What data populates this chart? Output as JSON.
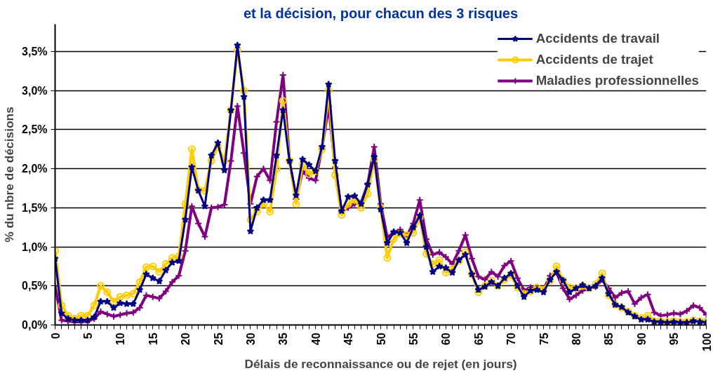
{
  "chart_data": {
    "type": "line",
    "title": "et la décision, pour chacun des 3 risques",
    "xlabel": "Délais de reconnaissance ou de rejet (en jours)",
    "ylabel": "% du nbre de décisions",
    "x": [
      0,
      1,
      2,
      3,
      4,
      5,
      6,
      7,
      8,
      9,
      10,
      11,
      12,
      13,
      14,
      15,
      16,
      17,
      18,
      19,
      20,
      21,
      22,
      23,
      24,
      25,
      26,
      27,
      28,
      29,
      30,
      31,
      32,
      33,
      34,
      35,
      36,
      37,
      38,
      39,
      40,
      41,
      42,
      43,
      44,
      45,
      46,
      47,
      48,
      49,
      50,
      51,
      52,
      53,
      54,
      55,
      56,
      57,
      58,
      59,
      60,
      61,
      62,
      63,
      64,
      65,
      66,
      67,
      68,
      69,
      70,
      71,
      72,
      73,
      74,
      75,
      76,
      77,
      78,
      79,
      80,
      81,
      82,
      83,
      84,
      85,
      86,
      87,
      88,
      89,
      90,
      91,
      92,
      93,
      94,
      95,
      96,
      97,
      98,
      99,
      100
    ],
    "series": [
      {
        "name": "Accidents de travail",
        "color": "#000080",
        "marker": "star",
        "values": [
          0.85,
          0.15,
          0.08,
          0.06,
          0.06,
          0.06,
          0.1,
          0.3,
          0.3,
          0.22,
          0.28,
          0.27,
          0.27,
          0.45,
          0.65,
          0.6,
          0.56,
          0.7,
          0.8,
          0.82,
          1.35,
          2.02,
          1.72,
          1.52,
          2.17,
          2.33,
          1.98,
          2.75,
          3.58,
          2.92,
          1.2,
          1.5,
          1.6,
          1.6,
          2.17,
          2.75,
          2.1,
          1.66,
          2.12,
          2.05,
          1.97,
          2.28,
          3.08,
          2.1,
          1.46,
          1.64,
          1.65,
          1.55,
          1.8,
          2.15,
          1.48,
          1.05,
          1.19,
          1.18,
          1.05,
          1.25,
          1.4,
          1.0,
          0.68,
          0.75,
          0.73,
          0.67,
          0.83,
          0.9,
          0.65,
          0.45,
          0.49,
          0.55,
          0.5,
          0.6,
          0.66,
          0.5,
          0.36,
          0.44,
          0.45,
          0.42,
          0.58,
          0.68,
          0.57,
          0.42,
          0.47,
          0.51,
          0.47,
          0.5,
          0.6,
          0.4,
          0.26,
          0.23,
          0.16,
          0.11,
          0.07,
          0.07,
          0.04,
          0.04,
          0.03,
          0.04,
          0.03,
          0.03,
          0.05,
          0.04,
          0.03
        ]
      },
      {
        "name": "Accidents de trajet",
        "color": "#ffcc00",
        "marker": "circle",
        "values": [
          0.95,
          0.25,
          0.12,
          0.08,
          0.12,
          0.12,
          0.25,
          0.5,
          0.42,
          0.3,
          0.36,
          0.38,
          0.4,
          0.55,
          0.74,
          0.75,
          0.68,
          0.78,
          0.86,
          0.88,
          1.55,
          2.25,
          1.73,
          1.72,
          2.1,
          2.28,
          2.1,
          2.75,
          3.52,
          3.0,
          1.35,
          1.45,
          1.55,
          1.45,
          2.0,
          2.87,
          2.1,
          1.55,
          2.05,
          1.93,
          1.97,
          2.25,
          3.0,
          1.92,
          1.41,
          1.55,
          1.6,
          1.5,
          1.68,
          2.12,
          1.5,
          0.86,
          1.1,
          1.17,
          1.15,
          1.18,
          1.38,
          0.91,
          0.78,
          0.83,
          0.67,
          0.72,
          0.82,
          0.93,
          0.65,
          0.42,
          0.5,
          0.57,
          0.5,
          0.58,
          0.64,
          0.48,
          0.4,
          0.43,
          0.48,
          0.45,
          0.57,
          0.75,
          0.57,
          0.48,
          0.47,
          0.5,
          0.47,
          0.52,
          0.66,
          0.38,
          0.26,
          0.22,
          0.17,
          0.12,
          0.09,
          0.12,
          0.05,
          0.05,
          0.04,
          0.05,
          0.04,
          0.04,
          0.06,
          0.05,
          0.04
        ]
      },
      {
        "name": "Maladies professionnelles",
        "color": "#800080",
        "marker": "cross",
        "values": [
          0.5,
          0.06,
          0.05,
          0.04,
          0.04,
          0.05,
          0.08,
          0.17,
          0.14,
          0.11,
          0.13,
          0.15,
          0.16,
          0.22,
          0.38,
          0.36,
          0.34,
          0.43,
          0.55,
          0.63,
          0.95,
          1.52,
          1.3,
          1.13,
          1.5,
          1.51,
          1.54,
          2.1,
          2.8,
          2.2,
          1.55,
          1.9,
          2.0,
          1.85,
          2.6,
          3.2,
          2.1,
          1.61,
          1.97,
          1.88,
          1.85,
          2.27,
          2.8,
          2.02,
          1.45,
          1.5,
          1.55,
          1.57,
          1.8,
          2.28,
          1.55,
          1.12,
          1.18,
          1.22,
          1.14,
          1.3,
          1.6,
          1.1,
          0.9,
          0.93,
          0.87,
          0.78,
          0.95,
          1.15,
          0.85,
          0.62,
          0.58,
          0.68,
          0.62,
          0.76,
          0.82,
          0.6,
          0.44,
          0.48,
          0.47,
          0.45,
          0.63,
          0.67,
          0.47,
          0.33,
          0.38,
          0.44,
          0.47,
          0.49,
          0.58,
          0.47,
          0.35,
          0.41,
          0.43,
          0.27,
          0.35,
          0.39,
          0.16,
          0.12,
          0.13,
          0.15,
          0.14,
          0.18,
          0.25,
          0.22,
          0.13
        ]
      }
    ],
    "xlim": [
      0,
      100
    ],
    "xticks": [
      0,
      {
        "value": 1,
        "label": null
      },
      {
        "value": 2,
        "label": null
      },
      {
        "value": 3,
        "label": null
      },
      {
        "value": 4,
        "label": null
      },
      5,
      {
        "value": 6,
        "label": null
      },
      {
        "value": 7,
        "label": null
      },
      {
        "value": 8,
        "label": null
      },
      {
        "value": 9,
        "label": null
      },
      10,
      {
        "value": 11,
        "label": null
      },
      {
        "value": 12,
        "label": null
      },
      {
        "value": 13,
        "label": null
      },
      {
        "value": 14,
        "label": null
      },
      15,
      {
        "value": 16,
        "label": null
      },
      {
        "value": 17,
        "label": null
      },
      {
        "value": 18,
        "label": null
      },
      {
        "value": 19,
        "label": null
      },
      20,
      {
        "value": 21,
        "label": null
      },
      {
        "value": 22,
        "label": null
      },
      {
        "value": 23,
        "label": null
      },
      {
        "value": 24,
        "label": null
      },
      25,
      {
        "value": 26,
        "label": null
      },
      {
        "value": 27,
        "label": null
      },
      {
        "value": 28,
        "label": null
      },
      {
        "value": 29,
        "label": null
      },
      30,
      {
        "value": 31,
        "label": null
      },
      {
        "value": 32,
        "label": null
      },
      {
        "value": 33,
        "label": null
      },
      {
        "value": 34,
        "label": null
      },
      35,
      {
        "value": 36,
        "label": null
      },
      {
        "value": 37,
        "label": null
      },
      {
        "value": 38,
        "label": null
      },
      {
        "value": 39,
        "label": null
      },
      40,
      {
        "value": 41,
        "label": null
      },
      {
        "value": 42,
        "label": null
      },
      {
        "value": 43,
        "label": null
      },
      {
        "value": 44,
        "label": null
      },
      45,
      {
        "value": 46,
        "label": null
      },
      {
        "value": 47,
        "label": null
      },
      {
        "value": 48,
        "label": null
      },
      {
        "value": 49,
        "label": null
      },
      50,
      {
        "value": 51,
        "label": null
      },
      {
        "value": 52,
        "label": null
      },
      {
        "value": 53,
        "label": null
      },
      {
        "value": 54,
        "label": null
      },
      55,
      {
        "value": 56,
        "label": null
      },
      {
        "value": 57,
        "label": null
      },
      {
        "value": 58,
        "label": null
      },
      {
        "value": 59,
        "label": null
      },
      60,
      {
        "value": 61,
        "label": null
      },
      {
        "value": 62,
        "label": null
      },
      {
        "value": 63,
        "label": null
      },
      {
        "value": 64,
        "label": null
      },
      65,
      {
        "value": 66,
        "label": null
      },
      {
        "value": 67,
        "label": null
      },
      {
        "value": 68,
        "label": null
      },
      {
        "value": 69,
        "label": null
      },
      70,
      {
        "value": 71,
        "label": null
      },
      {
        "value": 72,
        "label": null
      },
      {
        "value": 73,
        "label": null
      },
      {
        "value": 74,
        "label": null
      },
      75,
      {
        "value": 76,
        "label": null
      },
      {
        "value": 77,
        "label": null
      },
      {
        "value": 78,
        "label": null
      },
      {
        "value": 79,
        "label": null
      },
      80,
      {
        "value": 81,
        "label": null
      },
      {
        "value": 82,
        "label": null
      },
      {
        "value": 83,
        "label": null
      },
      {
        "value": 84,
        "label": null
      },
      85,
      {
        "value": 86,
        "label": null
      },
      {
        "value": 87,
        "label": null
      },
      {
        "value": 88,
        "label": null
      },
      {
        "value": 89,
        "label": null
      },
      90,
      {
        "value": 91,
        "label": null
      },
      {
        "value": 92,
        "label": null
      },
      {
        "value": 93,
        "label": null
      },
      {
        "value": 94,
        "label": null
      },
      95,
      {
        "value": 96,
        "label": null
      },
      {
        "value": 97,
        "label": null
      },
      {
        "value": 98,
        "label": null
      },
      {
        "value": 99,
        "label": null
      },
      100
    ],
    "ylim": [
      0,
      3.85
    ],
    "yticks": [
      {
        "value": 0,
        "label": "0,0%"
      },
      {
        "value": 0.5,
        "label": "0,5%"
      },
      {
        "value": 1,
        "label": "1,0%"
      },
      {
        "value": 1.5,
        "label": "1,5%"
      },
      {
        "value": 2,
        "label": "2,0%"
      },
      {
        "value": 2.5,
        "label": "2,5%"
      },
      {
        "value": 3,
        "label": "3,0%"
      },
      {
        "value": 3.5,
        "label": "3,5%"
      }
    ],
    "grid": "y",
    "legend": "top right",
    "line_style": "solid"
  }
}
